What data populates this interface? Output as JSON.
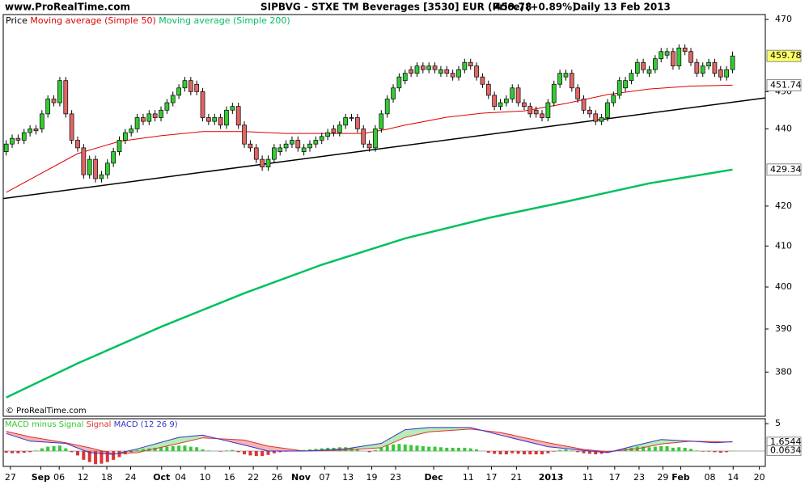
{
  "chart_data": [
    {
      "type": "candlestick",
      "site": "www.ProRealTime.com",
      "title": "SIPBVG - STXE TM Beverages [3530] EUR (Price)",
      "change": "(+0.89%)",
      "period": "Daily",
      "date": "13 Feb 2013",
      "watermark": "© ProRealTime.com",
      "price_name": "Price",
      "up_color": "#33cc33",
      "down_color": "#e06666",
      "last_price_color": "#ffff66",
      "log_scale": true,
      "xlim": [
        -0.5,
        127.5
      ],
      "ylim": [
        370,
        471.4
      ],
      "yticks": [
        380,
        390,
        400,
        410,
        420,
        440,
        450,
        470
      ],
      "xticks": [
        {
          "value": 0.7,
          "label": "27"
        },
        {
          "value": 5.8,
          "label": "Sep"
        },
        {
          "value": 8.9,
          "label": "06"
        },
        {
          "value": 12.9,
          "label": "12"
        },
        {
          "value": 16.9,
          "label": "18"
        },
        {
          "value": 20.9,
          "label": "24"
        },
        {
          "value": 26.1,
          "label": "Oct"
        },
        {
          "value": 29.3,
          "label": "04"
        },
        {
          "value": 33.4,
          "label": "10"
        },
        {
          "value": 37.5,
          "label": "16"
        },
        {
          "value": 41.5,
          "label": "22"
        },
        {
          "value": 45.5,
          "label": "26"
        },
        {
          "value": 49.5,
          "label": "Nov"
        },
        {
          "value": 53.5,
          "label": "07"
        },
        {
          "value": 57.4,
          "label": "13"
        },
        {
          "value": 61.4,
          "label": "19"
        },
        {
          "value": 65.4,
          "label": "23"
        },
        {
          "value": 71.8,
          "label": "Dec"
        },
        {
          "value": 77.6,
          "label": "11"
        },
        {
          "value": 81.5,
          "label": "17"
        },
        {
          "value": 85.7,
          "label": "21"
        },
        {
          "value": 91.5,
          "label": "2013"
        },
        {
          "value": 97.7,
          "label": "11"
        },
        {
          "value": 102.2,
          "label": "17"
        },
        {
          "value": 106.3,
          "label": "23"
        },
        {
          "value": 110.3,
          "label": "29"
        },
        {
          "value": 113.3,
          "label": "Feb"
        },
        {
          "value": 118.2,
          "label": "08"
        },
        {
          "value": 122.1,
          "label": "14"
        },
        {
          "value": 126.5,
          "label": "20"
        }
      ],
      "open": [
        434,
        436,
        437.5,
        437,
        439,
        440,
        440,
        444,
        448,
        447,
        453,
        444,
        437,
        435,
        428,
        432,
        427,
        428,
        431,
        434,
        437,
        439,
        440,
        443,
        442,
        444,
        443,
        445,
        447,
        449,
        451,
        453,
        452,
        450,
        443,
        442,
        443,
        441,
        445,
        446,
        441,
        436,
        435,
        432,
        430,
        432,
        434,
        435,
        436,
        437,
        434,
        435,
        436,
        437,
        438,
        440,
        439,
        441,
        443,
        443,
        440,
        436,
        435,
        440,
        444,
        448,
        451,
        453,
        456,
        455,
        457,
        456,
        457,
        455,
        456,
        455,
        454,
        456,
        458,
        457,
        454,
        452,
        449,
        446,
        447,
        448,
        451,
        447,
        446,
        445,
        444,
        443,
        447,
        452,
        454,
        455,
        451,
        448,
        445,
        444,
        442,
        443,
        447,
        449,
        451,
        453,
        455,
        458,
        455,
        456,
        459,
        460,
        461,
        457,
        462,
        461,
        458,
        455,
        457,
        458,
        456,
        454,
        456
      ],
      "high": [
        437,
        438.5,
        438.5,
        440,
        441,
        441,
        445,
        449,
        449,
        454,
        454,
        445,
        438,
        436,
        433,
        433,
        429,
        432,
        435,
        438,
        440,
        441,
        444,
        444,
        445,
        445,
        446,
        448,
        450,
        452,
        454,
        454,
        453,
        451,
        444,
        444,
        444,
        446,
        447,
        447,
        442,
        437,
        436,
        433,
        433,
        436,
        436,
        437,
        438,
        438,
        436,
        437,
        438,
        439,
        440,
        441,
        442,
        444,
        444,
        444,
        441,
        437,
        441,
        445,
        449,
        452,
        455,
        456,
        457,
        458,
        458,
        458,
        458,
        457,
        457,
        456,
        457,
        459,
        459,
        458,
        455,
        453,
        450,
        448,
        449,
        452,
        452,
        448,
        447,
        446,
        445,
        448,
        453,
        456,
        456,
        456,
        452,
        449,
        446,
        445,
        444,
        448,
        450,
        454,
        454,
        456,
        459,
        459,
        457,
        460,
        462,
        462,
        462,
        463,
        463,
        462,
        459,
        458,
        459,
        459,
        457,
        457,
        461
      ],
      "low": [
        433,
        435,
        436,
        436,
        438,
        438.5,
        439,
        443,
        446,
        446,
        443,
        436,
        434,
        427,
        427,
        426,
        426,
        427,
        430,
        433,
        436,
        438,
        439,
        441,
        441,
        442,
        442,
        444,
        446,
        448,
        450,
        449,
        449,
        442,
        441,
        441,
        440,
        440,
        444,
        440,
        435,
        434,
        431,
        429,
        429,
        431,
        433,
        434,
        435,
        434,
        433,
        434,
        435,
        436,
        437,
        438,
        438,
        440,
        442,
        439,
        435,
        434,
        434,
        439,
        443,
        447,
        450,
        452,
        454,
        454,
        455,
        455,
        455,
        454,
        454,
        453,
        453,
        455,
        456,
        453,
        451,
        448,
        445,
        445,
        446,
        447,
        446,
        445,
        443,
        443,
        442,
        442,
        446,
        451,
        453,
        450,
        447,
        444,
        443,
        441,
        441,
        442,
        446,
        448,
        450,
        452,
        454,
        455,
        454,
        455,
        458,
        459,
        456,
        456,
        460,
        457,
        454,
        454,
        456,
        454,
        453,
        453,
        455
      ],
      "close": [
        436,
        437.5,
        437,
        439,
        440,
        439.5,
        444,
        448,
        447,
        453,
        444,
        437,
        435,
        428,
        432,
        427,
        428,
        431,
        434,
        437,
        439,
        440,
        443,
        442,
        444,
        443,
        445,
        447,
        449,
        451,
        453,
        450,
        450,
        443,
        442,
        443,
        441,
        445,
        446,
        441,
        436,
        435,
        432,
        430,
        432,
        435,
        435,
        436,
        437,
        435,
        435,
        436,
        437,
        438,
        439,
        439,
        441,
        443,
        443,
        440,
        436,
        435,
        440,
        444,
        448,
        451,
        454,
        455,
        455,
        457,
        456,
        457,
        456,
        456,
        455,
        454,
        456,
        458,
        457,
        454,
        452,
        449,
        446,
        447,
        448,
        451,
        447,
        446,
        444,
        444,
        443,
        447,
        452,
        455,
        455,
        451,
        448,
        445,
        444,
        442,
        443,
        447,
        449,
        453,
        453,
        455,
        458,
        456,
        456,
        459,
        461,
        461,
        457,
        462,
        461,
        458,
        455,
        457,
        458,
        455,
        454,
        456,
        459.78
      ],
      "series": [
        {
          "name": "Moving average (Simple 50)",
          "color": "#dd0000",
          "width": 1,
          "x": [
            0,
            12,
            19,
            26,
            33,
            40,
            47,
            53,
            60,
            64,
            67,
            74,
            80,
            87,
            94,
            101,
            108,
            115,
            122
          ],
          "values": [
            423.5,
            433.5,
            436.7,
            438.2,
            439.3,
            439.3,
            438.8,
            438.8,
            438.8,
            439.9,
            441,
            443.1,
            444.2,
            444.8,
            446.8,
            449.2,
            450.7,
            451.5,
            451.74
          ]
        },
        {
          "name": "Moving average (Simple 200)",
          "color": "#00c060",
          "width": 2.5,
          "x": [
            0,
            12,
            26,
            40,
            53,
            67,
            81,
            94,
            108,
            122
          ],
          "values": [
            374.2,
            382,
            390.5,
            398.5,
            405.4,
            411.9,
            417,
            421.1,
            425.8,
            429.34
          ]
        }
      ],
      "trendline": {
        "color": "#000000",
        "x": [
          -0.5,
          127.5
        ],
        "values": [
          421.9,
          448.3
        ]
      }
    },
    {
      "type": "macd",
      "xlim": [
        -0.5,
        127.5
      ],
      "ylim": [
        -2.8,
        5.9
      ],
      "yticks": [
        5
      ],
      "histogram": {
        "name": "MACD minus Signal",
        "up_color": "#33cc33",
        "down_color": "#dd3333",
        "values": [
          -0.3,
          -0.4,
          -0.4,
          -0.3,
          -0.2,
          0.1,
          0.5,
          0.8,
          0.9,
          1.0,
          0.5,
          -0.2,
          -0.8,
          -1.6,
          -2.0,
          -2.4,
          -2.3,
          -2.0,
          -1.6,
          -1.1,
          -0.6,
          -0.2,
          0.2,
          0.4,
          0.5,
          0.6,
          0.7,
          0.8,
          0.9,
          1.0,
          1.0,
          0.8,
          0.7,
          0.3,
          0.1,
          0.0,
          -0.1,
          0.1,
          0.2,
          -0.2,
          -0.6,
          -0.8,
          -0.9,
          -0.9,
          -0.7,
          -0.4,
          -0.2,
          -0.1,
          0.0,
          0.1,
          0.2,
          0.3,
          0.4,
          0.5,
          0.6,
          0.6,
          0.7,
          0.7,
          0.6,
          0.3,
          0.0,
          -0.2,
          0.2,
          0.6,
          1.0,
          1.2,
          1.3,
          1.2,
          1.1,
          1.0,
          0.9,
          0.8,
          0.8,
          0.7,
          0.6,
          0.6,
          0.6,
          0.6,
          0.5,
          0.3,
          0.0,
          -0.3,
          -0.5,
          -0.6,
          -0.6,
          -0.4,
          -0.5,
          -0.6,
          -0.6,
          -0.6,
          -0.6,
          -0.4,
          -0.1,
          0.2,
          0.3,
          0.1,
          -0.2,
          -0.4,
          -0.5,
          -0.6,
          -0.5,
          -0.3,
          -0.1,
          0.2,
          0.4,
          0.6,
          0.8,
          0.8,
          0.7,
          0.8,
          0.9,
          0.9,
          0.6,
          0.7,
          0.6,
          0.4,
          0.1,
          -0.1,
          -0.1,
          -0.2,
          -0.3,
          -0.2,
          0.0634
        ]
      },
      "x": [
        0,
        4,
        10,
        14,
        18,
        22,
        29,
        33,
        40,
        44,
        50,
        57,
        63,
        67,
        71,
        78,
        83,
        91,
        97,
        101,
        106,
        110,
        115,
        119,
        122
      ],
      "series": [
        {
          "name": "Signal",
          "color": "#dd3333",
          "values": [
            3.6,
            2.6,
            1.5,
            0.6,
            -0.5,
            -0.3,
            1.4,
            2.4,
            2.0,
            0.9,
            0.0,
            0.2,
            0.6,
            2.5,
            3.5,
            4.0,
            3.4,
            1.5,
            0.3,
            -0.1,
            0.4,
            1.3,
            1.8,
            1.7,
            1.6544
          ]
        },
        {
          "name": "MACD (12 26 9)",
          "color": "#3333cc",
          "values": [
            3.2,
            1.8,
            1.4,
            -0.3,
            -0.6,
            0.4,
            2.5,
            2.9,
            1.1,
            0,
            0,
            0.4,
            1.4,
            3.9,
            4.3,
            4.3,
            2.9,
            0.8,
            0.1,
            -0.3,
            1.1,
            2.1,
            1.8,
            1.5,
            1.7178
          ]
        }
      ]
    }
  ]
}
